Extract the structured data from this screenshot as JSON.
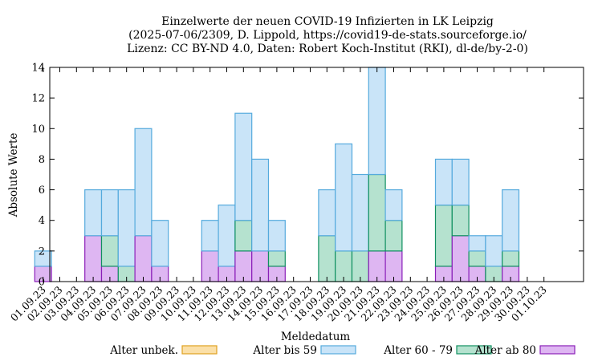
{
  "chart_data": {
    "type": "bar",
    "stacked": true,
    "title": "Einzelwerte der neuen COVID-19 Infizierten in LK Leipzig",
    "subtitle1": "(2025-07-06/2309, D. Lippold, https://covid19-de-stats.sourceforge.io/",
    "subtitle2": "Lizenz: CC BY-ND 4.0, Daten: Robert Koch-Institut (RKI), dl-de/by-2-0)",
    "xlabel": "Meldedatum",
    "ylabel": "Absolute Werte",
    "ylim": [
      0,
      14
    ],
    "yticks": [
      0,
      2,
      4,
      6,
      8,
      10,
      12,
      14
    ],
    "categories": [
      "01.09.23",
      "02.09.23",
      "03.09.23",
      "04.09.23",
      "05.09.23",
      "06.09.23",
      "07.09.23",
      "08.09.23",
      "09.09.23",
      "10.09.23",
      "11.09.23",
      "12.09.23",
      "13.09.23",
      "14.09.23",
      "15.09.23",
      "16.09.23",
      "17.09.23",
      "18.09.23",
      "19.09.23",
      "20.09.23",
      "21.09.23",
      "22.09.23",
      "23.09.23",
      "24.09.23",
      "25.09.23",
      "26.09.23",
      "27.09.23",
      "28.09.23",
      "29.09.23",
      "30.09.23",
      "01.10.23"
    ],
    "series": [
      {
        "name": "Alter unbek.",
        "fill": "#fbe0a8",
        "stroke": "#e0a020",
        "values": [
          0,
          0,
          0,
          0,
          0,
          0,
          0,
          0,
          0,
          0,
          0,
          0,
          0,
          0,
          0,
          0,
          0,
          0,
          0,
          0,
          0,
          0,
          0,
          0,
          0,
          0,
          0,
          0,
          0,
          0,
          0
        ]
      },
      {
        "name": "Alter bis 59",
        "fill": "#c9e4f8",
        "stroke": "#55aadd",
        "values": [
          1,
          0,
          0,
          3,
          3,
          5,
          7,
          3,
          0,
          0,
          2,
          4,
          7,
          6,
          2,
          0,
          0,
          3,
          7,
          5,
          7,
          2,
          0,
          0,
          3,
          3,
          1,
          2,
          4,
          0,
          0
        ]
      },
      {
        "name": "Alter 60 - 79",
        "fill": "#b5e2cf",
        "stroke": "#109060",
        "values": [
          0,
          0,
          0,
          0,
          2,
          1,
          0,
          0,
          0,
          0,
          0,
          0,
          2,
          0,
          1,
          0,
          0,
          3,
          2,
          2,
          5,
          2,
          0,
          0,
          4,
          2,
          1,
          1,
          1,
          0,
          0
        ]
      },
      {
        "name": "Alter ab 80",
        "fill": "#deb6f2",
        "stroke": "#8a1fb8",
        "values": [
          1,
          0,
          0,
          3,
          1,
          0,
          3,
          1,
          0,
          0,
          2,
          1,
          2,
          2,
          1,
          0,
          0,
          0,
          0,
          0,
          2,
          2,
          0,
          0,
          1,
          3,
          1,
          0,
          1,
          0,
          0
        ]
      }
    ],
    "legend_position": "bottom"
  }
}
